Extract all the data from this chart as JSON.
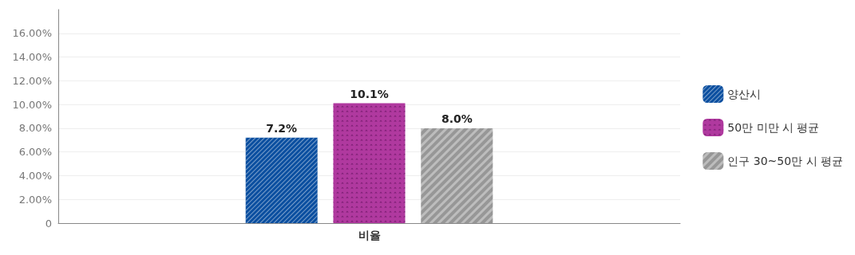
{
  "chart_data": {
    "type": "bar",
    "xlabel": null,
    "categories": [
      "비율"
    ],
    "series": [
      {
        "name": "양산시",
        "color": "#0b4fa0",
        "values": [
          7.2
        ],
        "value_labels": [
          "7.2%"
        ]
      },
      {
        "name": "50만 미만 시 평균",
        "color": "#b0399f",
        "values": [
          10.1
        ],
        "value_labels": [
          "10.1%"
        ]
      },
      {
        "name": "인구 30~50만 시 평균",
        "color": "#bdbdbd",
        "values": [
          8.0
        ],
        "value_labels": [
          "8.0%"
        ]
      }
    ],
    "ylim": [
      0,
      18
    ],
    "yticks": [
      0,
      {
        "value": 2,
        "label": "2.00%"
      },
      {
        "value": 4,
        "label": "4.00%"
      },
      {
        "value": 6,
        "label": "6.00%"
      },
      {
        "value": 8,
        "label": "8.00%"
      },
      {
        "value": 10,
        "label": "10.00%"
      },
      {
        "value": 12,
        "label": "12.00%"
      },
      {
        "value": 14,
        "label": "14.00%"
      },
      {
        "value": 16,
        "label": "16.00%"
      }
    ],
    "grid": "y",
    "legend": "right"
  }
}
